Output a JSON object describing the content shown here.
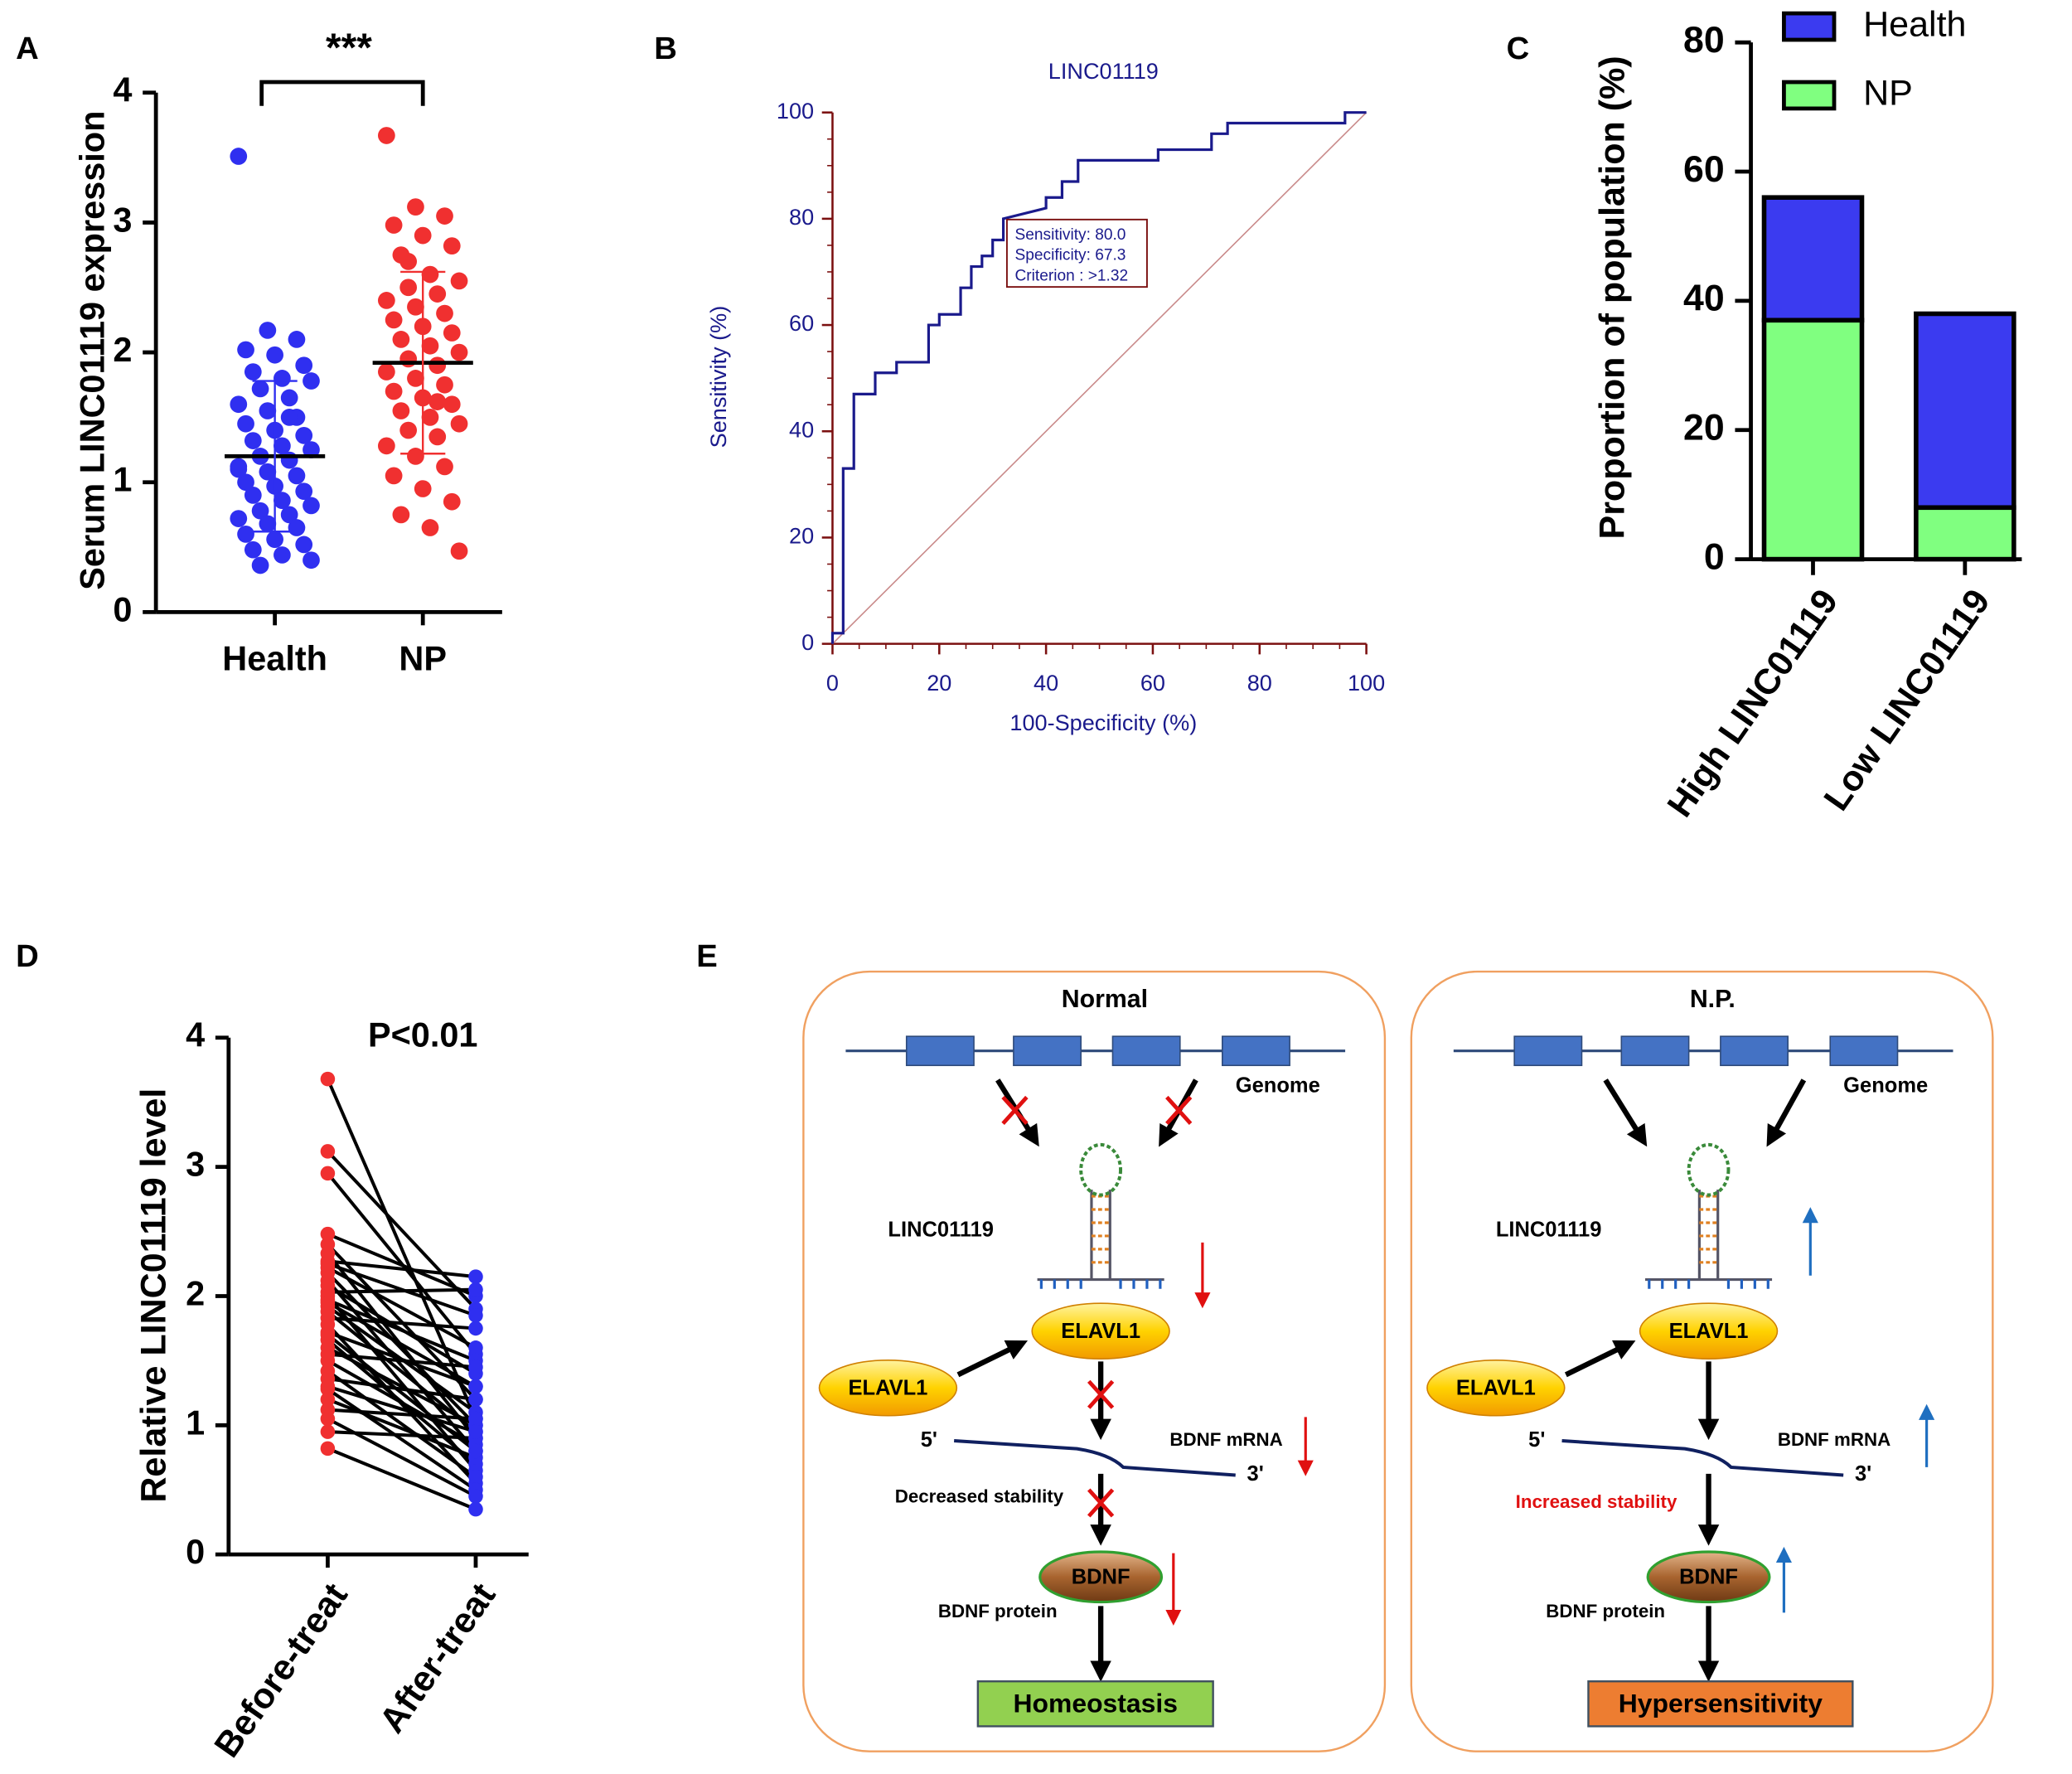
{
  "chart_data": [
    {
      "type": "strip",
      "label": "A",
      "ylabel": "Serum LINC01119 expression",
      "annotation": "***",
      "categories": [
        "Health",
        "NP"
      ],
      "colors": [
        "#2f2ff0",
        "#f03030"
      ],
      "values": [
        [
          3.51,
          2.17,
          2.1,
          2.02,
          1.98,
          1.9,
          1.85,
          1.8,
          1.78,
          1.72,
          1.65,
          1.6,
          1.55,
          1.5,
          1.45,
          1.4,
          1.36,
          1.32,
          1.28,
          1.25,
          1.2,
          1.17,
          1.12,
          1.08,
          1.05,
          1.0,
          0.97,
          0.93,
          0.9,
          0.86,
          0.82,
          0.78,
          0.75,
          0.72,
          0.68,
          0.65,
          0.6,
          0.56,
          0.52,
          0.48,
          0.44,
          0.4,
          0.36,
          1.5,
          1.1
        ],
        [
          3.67,
          3.12,
          3.05,
          2.98,
          2.9,
          2.82,
          2.75,
          2.6,
          2.55,
          2.5,
          2.45,
          2.4,
          2.35,
          2.3,
          2.25,
          2.2,
          2.15,
          2.1,
          2.05,
          2.0,
          1.95,
          1.9,
          1.85,
          1.8,
          1.75,
          1.7,
          1.65,
          1.6,
          1.55,
          1.5,
          1.45,
          1.4,
          1.35,
          1.28,
          1.2,
          1.12,
          1.05,
          0.95,
          0.85,
          0.75,
          0.65,
          0.47,
          2.7,
          1.62
        ]
      ],
      "means": [
        1.2,
        1.92
      ],
      "sds": [
        0.58,
        0.7
      ],
      "ylim": [
        0,
        4
      ],
      "yticks": [
        0,
        1,
        2,
        3,
        4
      ]
    },
    {
      "type": "line",
      "label": "B",
      "title": "LINC01119",
      "xlabel": "100-Specificity (%)",
      "ylabel": "Sensitivity (%)",
      "annotation": [
        "Sensitivity: 80.0",
        "Specificity: 67.3",
        "Criterion : >1.32"
      ],
      "color": "#1a1a8c",
      "axis_color": "#7b1010",
      "x": [
        0,
        0,
        2,
        2,
        4,
        4,
        8,
        8,
        12,
        12,
        18,
        18,
        20,
        20,
        24,
        24,
        26,
        26,
        28,
        28,
        30,
        30,
        32,
        32,
        40,
        40,
        43,
        43,
        46,
        46,
        61,
        61,
        71,
        71,
        74,
        74,
        96,
        96,
        100
      ],
      "y": [
        0,
        2,
        2,
        33,
        33,
        47,
        47,
        51,
        51,
        53,
        53,
        60,
        60,
        62,
        62,
        67,
        67,
        71,
        71,
        73,
        73,
        76,
        76,
        80,
        82,
        84,
        84,
        87,
        87,
        91,
        91,
        93,
        93,
        96,
        96,
        98,
        98,
        100,
        100
      ],
      "xlim": [
        0,
        100
      ],
      "ylim": [
        0,
        100
      ],
      "xticks": [
        0,
        20,
        40,
        60,
        80,
        100
      ],
      "yticks": [
        0,
        20,
        40,
        60,
        80,
        100
      ]
    },
    {
      "type": "stacked_bar",
      "label": "C",
      "ylabel": "Proportion of population (%)",
      "categories": [
        "High LINC01119",
        "Low LINC01119"
      ],
      "series": [
        {
          "name": "NP",
          "color": "#80ff80",
          "values": [
            37,
            8
          ]
        },
        {
          "name": "Health",
          "color": "#3b3bf0",
          "values": [
            19,
            30
          ]
        }
      ],
      "ylim": [
        0,
        80
      ],
      "yticks": [
        0,
        20,
        40,
        60,
        80
      ]
    },
    {
      "type": "paired",
      "label": "D",
      "ylabel": "Relative LINC01119 level",
      "annotation": "P<0.01",
      "categories": [
        "Before-treat",
        "After-treat"
      ],
      "colors": [
        "#f03030",
        "#2f2ff0"
      ],
      "before": [
        3.68,
        3.12,
        2.95,
        2.48,
        2.4,
        2.33,
        2.27,
        2.22,
        2.18,
        2.12,
        2.08,
        2.03,
        2.0,
        1.97,
        1.92,
        1.88,
        1.83,
        1.78,
        1.72,
        1.66,
        1.6,
        1.55,
        1.5,
        1.42,
        1.36,
        1.28,
        1.2,
        1.12,
        1.05,
        0.95,
        0.82,
        2.25,
        1.95,
        1.7,
        1.3
      ],
      "after": [
        1.05,
        1.9,
        1.55,
        2.0,
        1.2,
        0.9,
        2.15,
        1.6,
        1.0,
        0.8,
        1.4,
        2.05,
        0.65,
        1.5,
        1.1,
        0.95,
        1.75,
        0.55,
        1.3,
        0.7,
        1.0,
        1.45,
        0.85,
        0.6,
        1.2,
        0.5,
        0.75,
        1.05,
        0.45,
        0.9,
        0.35,
        1.85,
        1.3,
        0.8,
        0.95
      ],
      "ylim": [
        0,
        4
      ],
      "yticks": [
        0,
        1,
        2,
        3,
        4
      ]
    }
  ],
  "diagram": {
    "label": "E",
    "panels": [
      {
        "title": "Normal",
        "genome": "Genome",
        "lnc": "LINC01119",
        "elavl_bound": "ELAVL1",
        "elavl_free": "ELAVL1",
        "five": "5'",
        "three": "3'",
        "mrna": "BDNF mRNA",
        "stability": "Decreased stability",
        "bdnf": "BDNF",
        "protein": "BDNF protein",
        "outcome": "Homeostasis"
      },
      {
        "title": "N.P.",
        "genome": "Genome",
        "lnc": "LINC01119",
        "elavl_bound": "ELAVL1",
        "elavl_free": "ELAVL1",
        "five": "5'",
        "three": "3'",
        "mrna": "BDNF mRNA",
        "stability": "Increased stability",
        "bdnf": "BDNF",
        "protein": "BDNF protein",
        "outcome": "Hypersensitivity"
      }
    ]
  }
}
